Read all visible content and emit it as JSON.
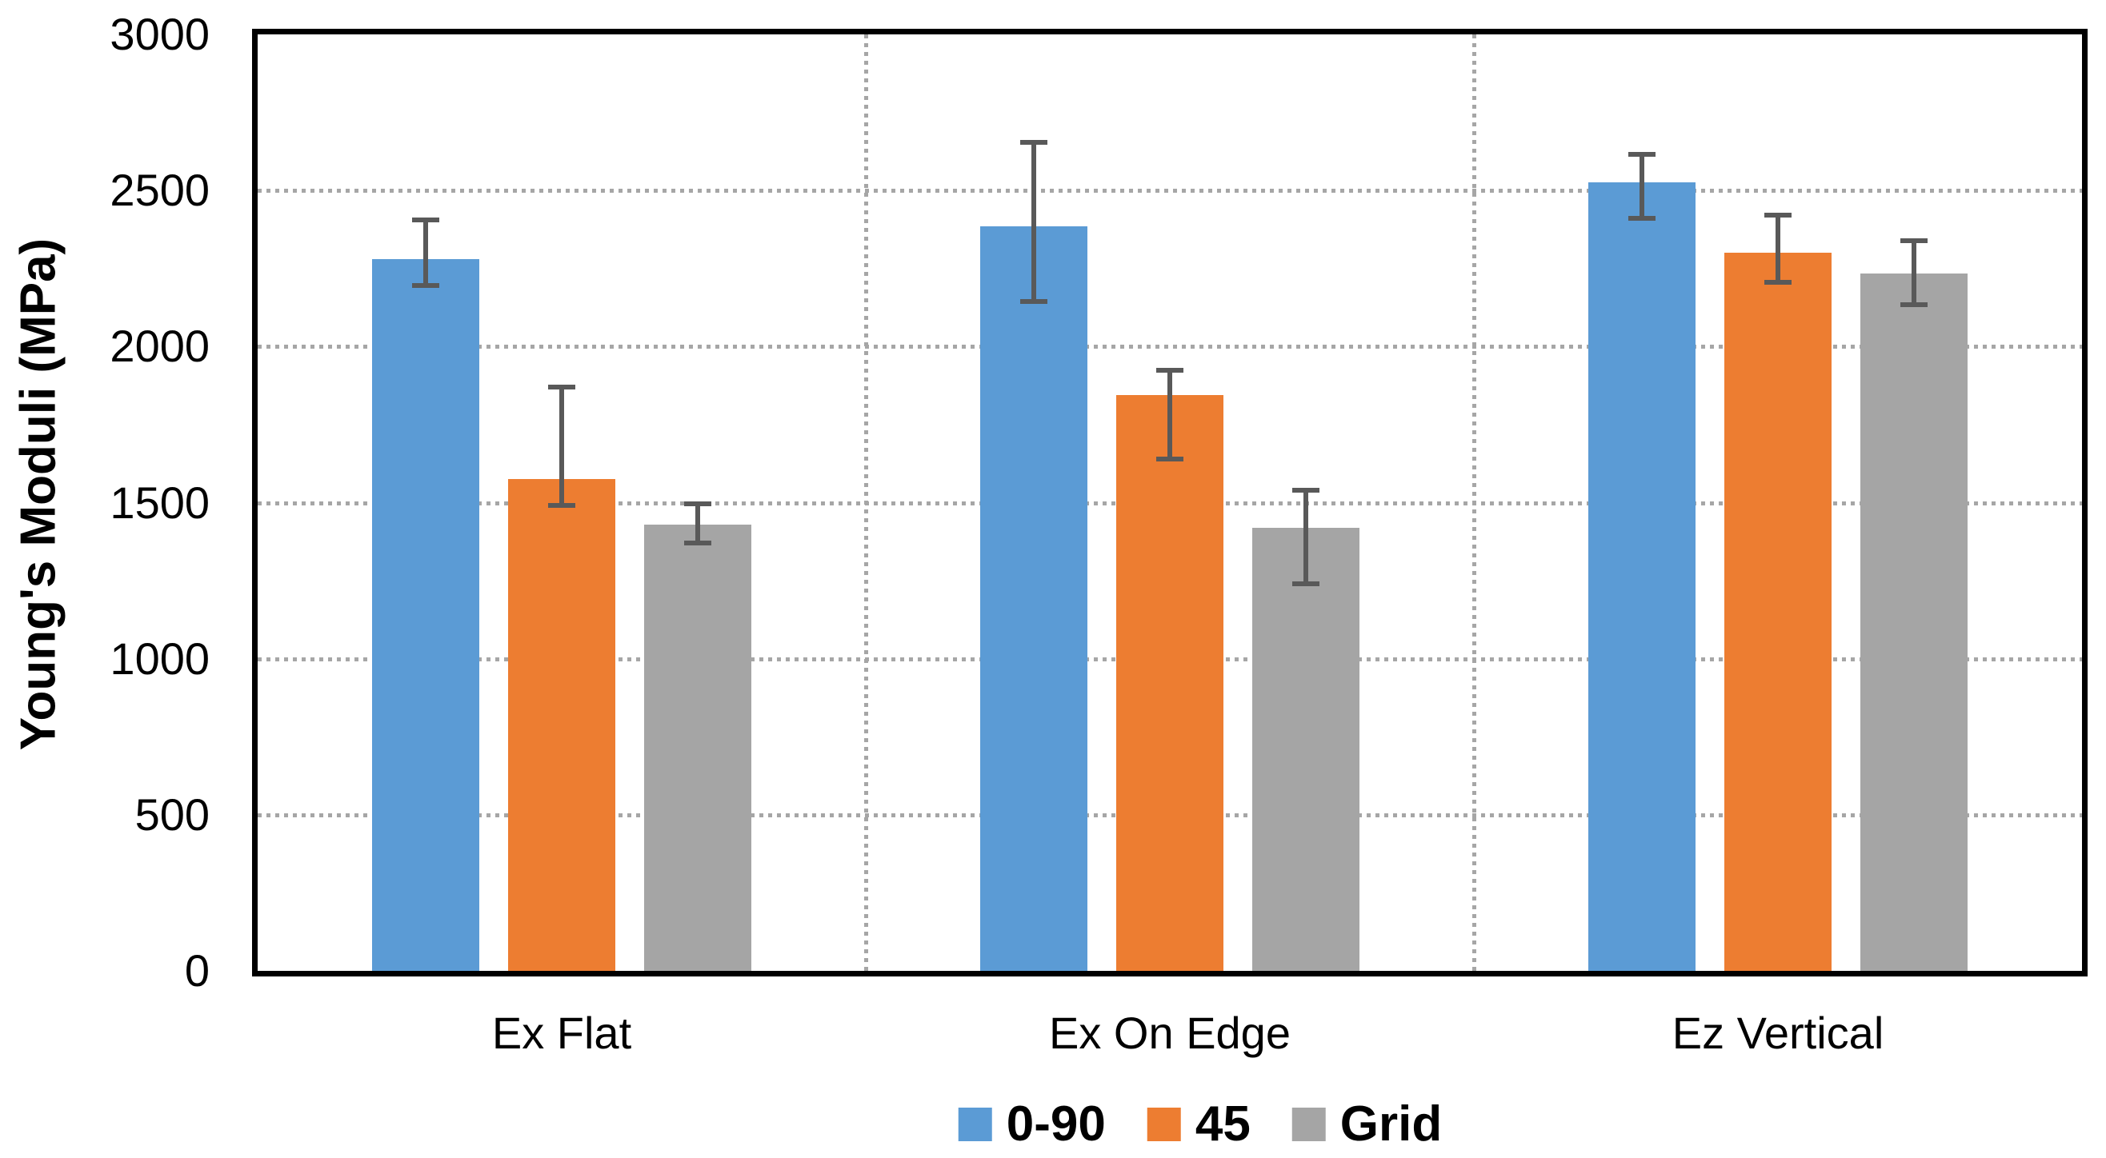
{
  "chart_data": {
    "type": "bar",
    "title": "",
    "xlabel": "",
    "ylabel": "Young's Moduli (MPa)",
    "categories": [
      "Ex Flat",
      "Ex On Edge",
      "Ez Vertical"
    ],
    "series": [
      {
        "name": "0-90",
        "color": "#5B9BD5",
        "values": [
          2280,
          2385,
          2525
        ],
        "error_low": [
          2195,
          2145,
          2410
        ],
        "error_high": [
          2405,
          2655,
          2615
        ]
      },
      {
        "name": "45",
        "color": "#ED7D31",
        "values": [
          1575,
          1845,
          2300
        ],
        "error_low": [
          1490,
          1640,
          2205
        ],
        "error_high": [
          1870,
          1925,
          2420
        ]
      },
      {
        "name": "Grid",
        "color": "#A5A5A5",
        "values": [
          1430,
          1420,
          2235
        ],
        "error_low": [
          1370,
          1240,
          2135
        ],
        "error_high": [
          1495,
          1540,
          2340
        ]
      }
    ],
    "ylim": [
      0,
      3000
    ],
    "yticks": [
      0,
      500,
      1000,
      1500,
      2000,
      2500,
      3000
    ],
    "gridline_values": [
      500,
      1000,
      1500,
      2000,
      2500
    ],
    "grid_style": "dotted",
    "category_separators": true,
    "legend_position": "bottom-center",
    "colors": {
      "axis": "#000000",
      "gridline": "#A6A6A6",
      "error_bar": "#595959",
      "background": "#FFFFFF",
      "text": "#000000"
    }
  }
}
